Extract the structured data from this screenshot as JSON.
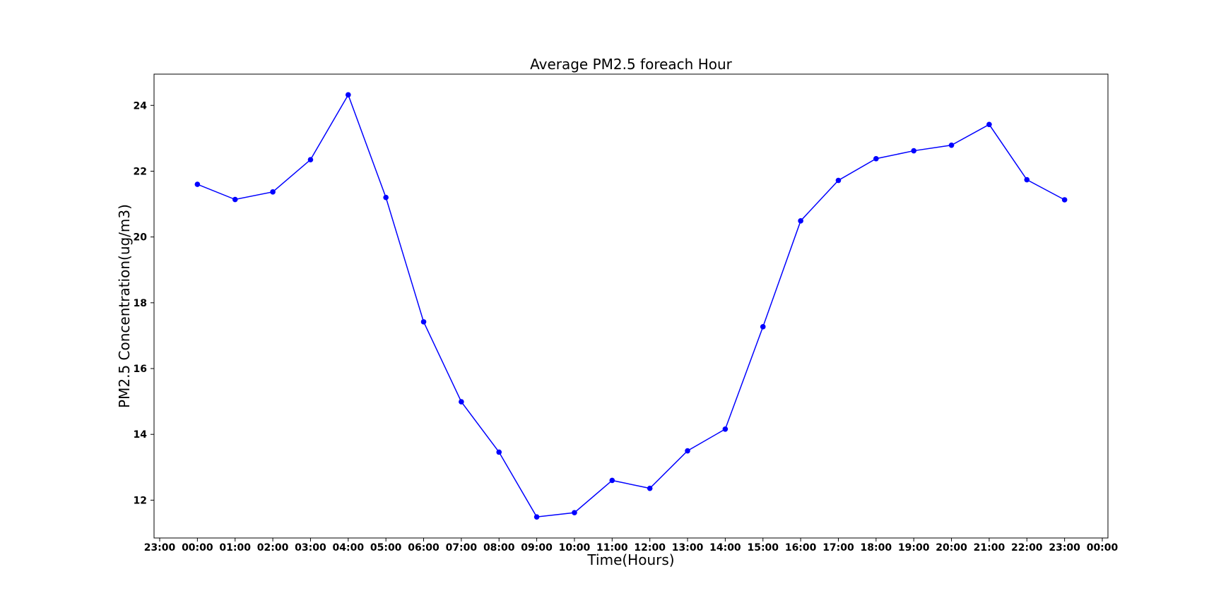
{
  "chart_data": {
    "type": "line",
    "title": "Average PM2.5 foreach Hour",
    "xlabel": "Time(Hours)",
    "ylabel": "PM2.5 Concentration(ug/m3)",
    "x_tick_labels": [
      "23:00",
      "00:00",
      "01:00",
      "02:00",
      "03:00",
      "04:00",
      "05:00",
      "06:00",
      "07:00",
      "08:00",
      "09:00",
      "10:00",
      "11:00",
      "12:00",
      "13:00",
      "14:00",
      "15:00",
      "16:00",
      "17:00",
      "18:00",
      "19:00",
      "20:00",
      "21:00",
      "22:00",
      "23:00",
      "00:00"
    ],
    "x_ticks_hour": [
      -1,
      0,
      1,
      2,
      3,
      4,
      5,
      6,
      7,
      8,
      9,
      10,
      11,
      12,
      13,
      14,
      15,
      16,
      17,
      18,
      19,
      20,
      21,
      22,
      23,
      24
    ],
    "xlim": [
      -1.15,
      24.15
    ],
    "ylim": [
      10.85,
      24.95
    ],
    "y_ticks": [
      12,
      14,
      16,
      18,
      20,
      22,
      24
    ],
    "y_tick_labels": [
      "12",
      "14",
      "16",
      "18",
      "20",
      "22",
      "24"
    ],
    "grid": false,
    "series": [
      {
        "x": [
          "00:00",
          "01:00",
          "02:00",
          "03:00",
          "04:00",
          "05:00",
          "06:00",
          "07:00",
          "08:00",
          "09:00",
          "10:00",
          "11:00",
          "12:00",
          "13:00",
          "14:00",
          "15:00",
          "16:00",
          "17:00",
          "18:00",
          "19:00",
          "20:00",
          "21:00",
          "22:00",
          "23:00"
        ],
        "x_hour": [
          0,
          1,
          2,
          3,
          4,
          5,
          6,
          7,
          8,
          9,
          10,
          11,
          12,
          13,
          14,
          15,
          16,
          17,
          18,
          19,
          20,
          21,
          22,
          23
        ],
        "values": [
          21.6,
          21.14,
          21.37,
          22.35,
          24.32,
          21.2,
          17.42,
          14.99,
          13.46,
          11.49,
          11.62,
          12.6,
          12.36,
          13.5,
          14.16,
          17.27,
          20.49,
          21.72,
          22.38,
          22.62,
          22.79,
          23.42,
          21.74,
          21.13
        ],
        "color": "#0000ff",
        "marker": "circle"
      }
    ]
  }
}
